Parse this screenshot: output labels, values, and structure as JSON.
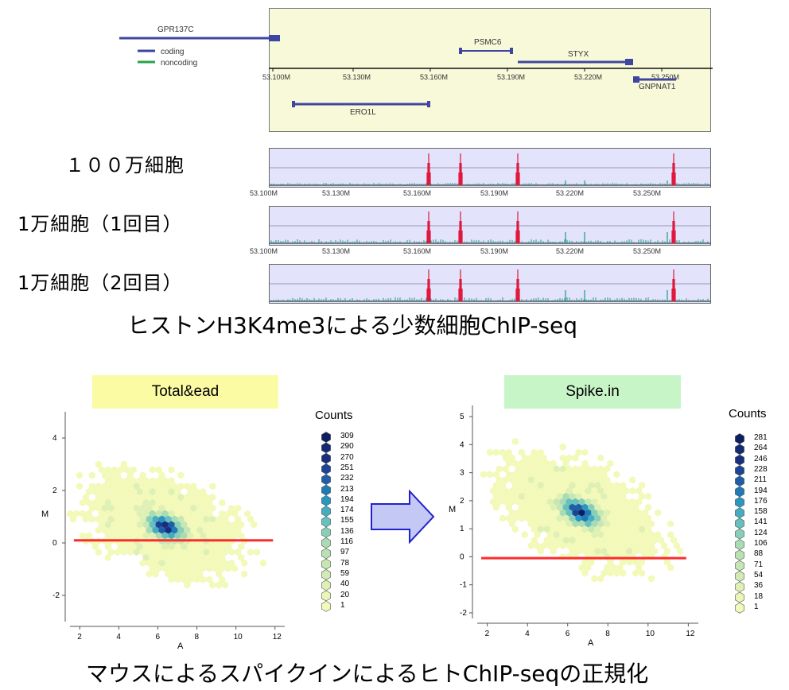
{
  "genome_view": {
    "genes": [
      {
        "name": "GPR137C"
      },
      {
        "name": "PSMC6"
      },
      {
        "name": "STYX"
      },
      {
        "name": "GNPNAT1"
      },
      {
        "name": "ERO1L"
      }
    ],
    "legend": [
      {
        "label": "coding",
        "color": "#3f46a0"
      },
      {
        "label": "noncoding",
        "color": "#27a24a"
      }
    ],
    "axis_ticks": [
      "53.100M",
      "53.130M",
      "53.160M",
      "53.190M",
      "53.220M",
      "53.250M"
    ],
    "tracks": [
      {
        "label": "１００万細胞"
      },
      {
        "label": "1万細胞（1回目）"
      },
      {
        "label": "1万細胞（2回目）"
      }
    ],
    "caption": "ヒストンH3K4me3による少数細胞ChIP-seq"
  },
  "ma_plots": [
    {
      "title": "Total&ead",
      "title_bg": "#fbfba4",
      "xlabel": "A",
      "ylabel": "M",
      "x_ticks": [
        "2",
        "4",
        "6",
        "8",
        "10",
        "12"
      ],
      "y_ticks": [
        "4",
        "2",
        "0",
        "-2"
      ],
      "legend_title": "Counts",
      "legend_values": [
        "309",
        "290",
        "270",
        "251",
        "232",
        "213",
        "194",
        "174",
        "155",
        "136",
        "116",
        "97",
        "78",
        "59",
        "40",
        "20",
        "1"
      ],
      "line_color": "#ff2a2a"
    },
    {
      "title": "Spike.in",
      "title_bg": "#c8f5c8",
      "xlabel": "A",
      "ylabel": "M",
      "x_ticks": [
        "2",
        "4",
        "6",
        "8",
        "10",
        "12"
      ],
      "y_ticks": [
        "5",
        "4",
        "3",
        "2",
        "1",
        "0",
        "-1",
        "-2"
      ],
      "legend_title": "Counts",
      "legend_values": [
        "281",
        "264",
        "246",
        "228",
        "211",
        "194",
        "176",
        "158",
        "141",
        "124",
        "106",
        "88",
        "71",
        "54",
        "36",
        "18",
        "1"
      ],
      "line_color": "#ff2a2a"
    }
  ],
  "bottom_caption": "マウスによるスパイクインによるヒトChIP-seqの正規化",
  "colors": {
    "gene_panel_bg": "#f8f9d9",
    "track_bg": "#e3e3fb",
    "peak_red": "#e0183c",
    "peak_teal": "#1e9c8a",
    "arrow_fill": "#c4c8f5",
    "arrow_stroke": "#2222cc"
  }
}
